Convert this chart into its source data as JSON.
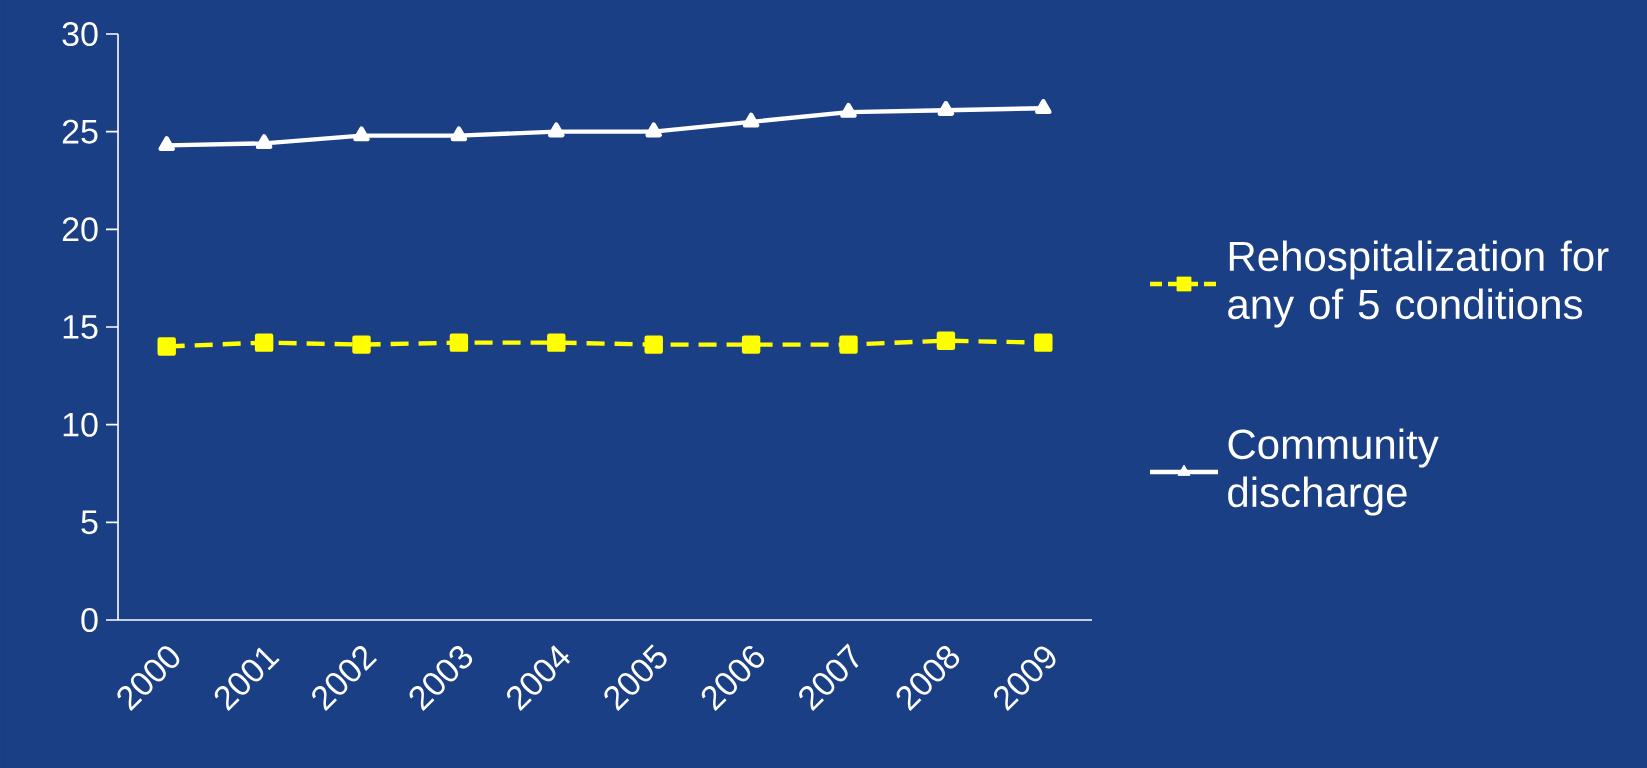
{
  "chart_data": {
    "type": "line",
    "categories": [
      "2000",
      "2001",
      "2002",
      "2003",
      "2004",
      "2005",
      "2006",
      "2007",
      "2008",
      "2009"
    ],
    "series": [
      {
        "name": "Rehospitalization for any of 5 conditions",
        "color": "#ffff00",
        "marker": "square",
        "line_style": "dashed",
        "values": [
          14.0,
          14.2,
          14.1,
          14.2,
          14.2,
          14.1,
          14.1,
          14.1,
          14.3,
          14.2
        ]
      },
      {
        "name": "Community discharge",
        "color": "#ffffff",
        "marker": "triangle",
        "line_style": "solid",
        "values": [
          24.3,
          24.4,
          24.8,
          24.8,
          25.0,
          25.0,
          25.5,
          26.0,
          26.1,
          26.2
        ]
      }
    ],
    "ylim": [
      0,
      30
    ],
    "yticks": [
      0,
      5,
      10,
      15,
      20,
      25,
      30
    ],
    "grid": false,
    "legend": "right"
  }
}
